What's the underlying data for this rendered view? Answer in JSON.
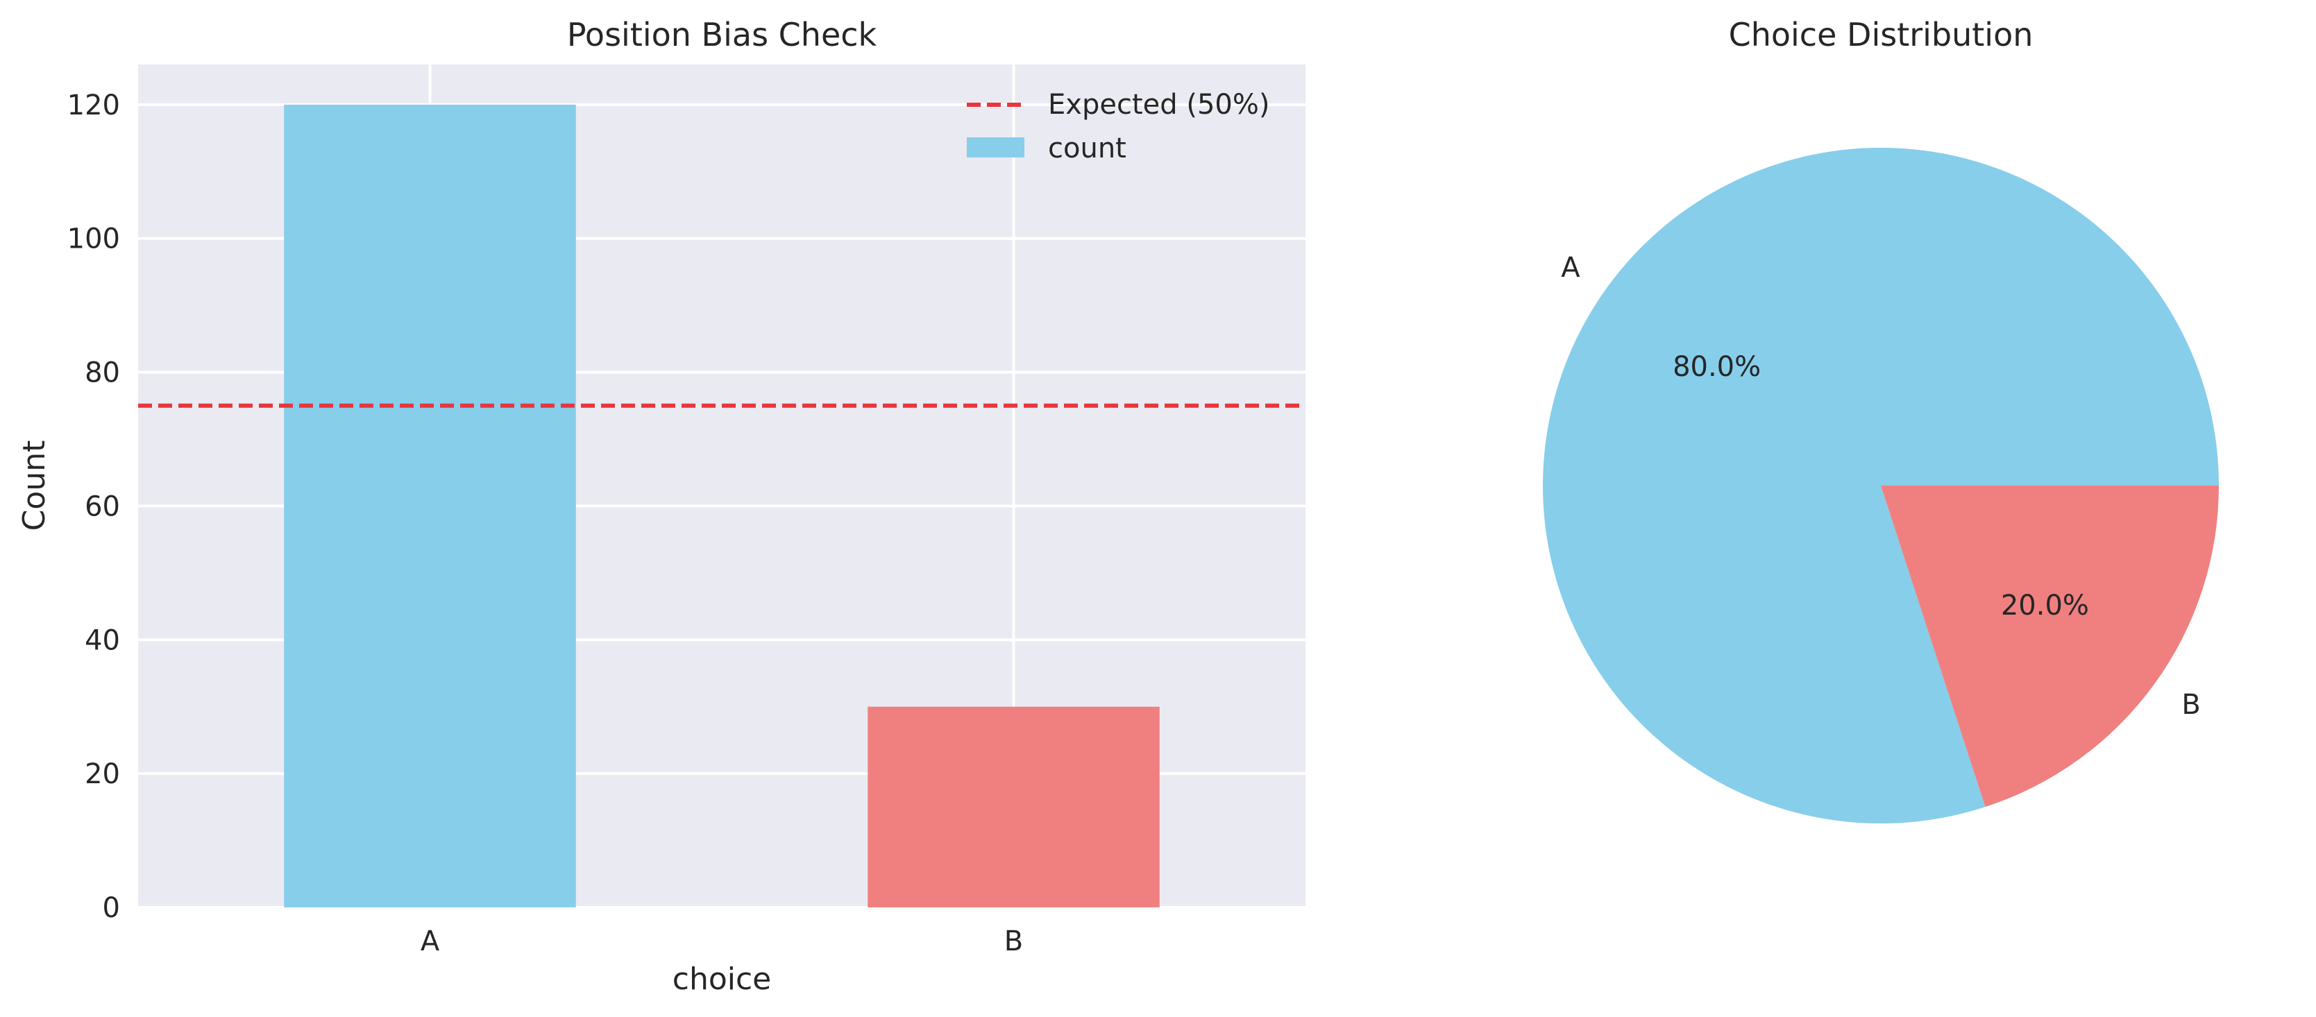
{
  "chart_data": [
    {
      "type": "bar",
      "title": "Position Bias Check",
      "xlabel": "choice",
      "ylabel": "Count",
      "categories": [
        "A",
        "B"
      ],
      "series": [
        {
          "name": "count",
          "values": [
            120,
            30
          ]
        }
      ],
      "bar_colors": [
        "#87CEEB",
        "#F08080"
      ],
      "reference_line": {
        "name": "Expected (50%)",
        "value": 75,
        "color": "#E8363B",
        "style": "dashed"
      },
      "ylim": [
        0,
        126
      ],
      "yticks": [
        0,
        20,
        40,
        60,
        80,
        100,
        120
      ],
      "grid": true,
      "background": "#EAEAF2",
      "legend_placement": "top-right"
    },
    {
      "type": "pie",
      "title": "Choice Distribution",
      "labels": [
        "A",
        "B"
      ],
      "values": [
        120,
        30
      ],
      "percent_labels": [
        "80.0%",
        "20.0%"
      ],
      "colors": [
        "#87CEEB",
        "#F08080"
      ],
      "start_angle_deg": 0,
      "direction": "counterclockwise"
    }
  ]
}
